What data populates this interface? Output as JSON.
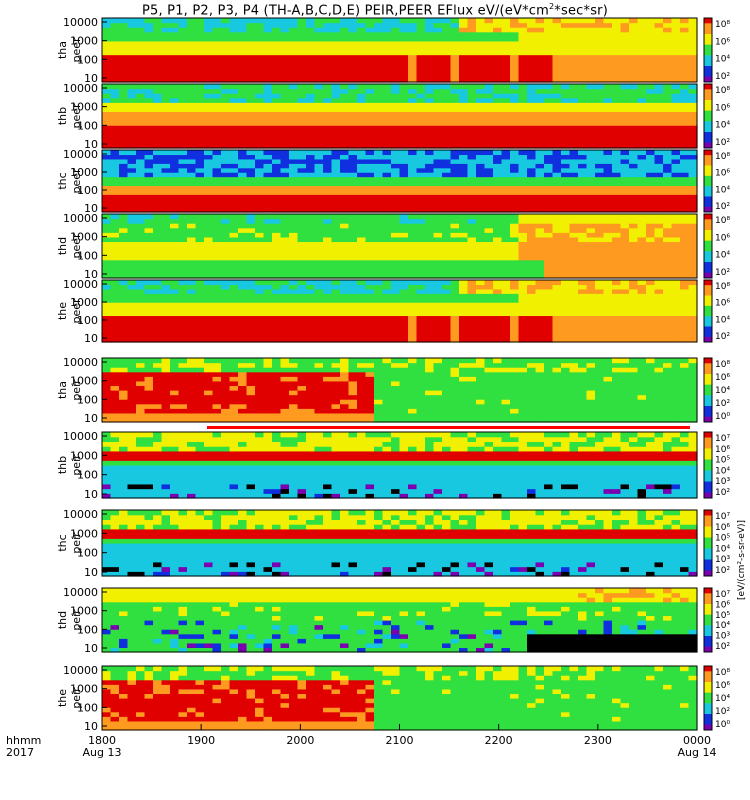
{
  "chart_data": {
    "type": "heatmap",
    "title": "P5, P1, P2, P3, P4 (TH-A,B,C,D,E) PEIR,PEER EFlux eV/(eV*cm²*sec*sr)",
    "colorbar_unit": "[eV/(cm²-s-sr-eV)]",
    "colors": {
      "black": "#000000",
      "purple": "#7a00b0",
      "blue": "#1030e0",
      "cyan": "#18c8e0",
      "green": "#30e040",
      "yellow": "#f0f000",
      "orange": "#ff9a20",
      "red": "#e00000",
      "axis_bar": "#ff0000"
    },
    "time_axis": {
      "row1_label": "hhmm",
      "row2_label": "2017",
      "ticks": [
        {
          "value": "1800",
          "date": "Aug 13"
        },
        {
          "value": "1900",
          "date": ""
        },
        {
          "value": "2000",
          "date": ""
        },
        {
          "value": "2100",
          "date": ""
        },
        {
          "value": "2200",
          "date": ""
        },
        {
          "value": "2300",
          "date": ""
        },
        {
          "value": "0000",
          "date": "Aug 14"
        }
      ],
      "range": [
        "2017-08-13 18:00",
        "2017-08-14 00:00"
      ]
    },
    "panels": [
      {
        "probe": "tha",
        "species": "peer",
        "yticks": [
          "10000",
          "1000",
          "100",
          "10"
        ],
        "cbticks": [
          "10⁸",
          "10⁶",
          "10⁴",
          "10²"
        ],
        "profile": "peer_hot"
      },
      {
        "probe": "thb",
        "species": "peer",
        "yticks": [
          "10000",
          "1000",
          "100",
          "10"
        ],
        "cbticks": [
          "10⁸",
          "10⁶",
          "10⁴",
          "10²"
        ],
        "profile": "peer_b"
      },
      {
        "probe": "thc",
        "species": "peer",
        "yticks": [
          "10000",
          "1000",
          "100",
          "10"
        ],
        "cbticks": [
          "10⁸",
          "10⁶",
          "10⁴",
          "10²"
        ],
        "profile": "peer_c"
      },
      {
        "probe": "thd",
        "species": "peer",
        "yticks": [
          "10000",
          "1000",
          "100",
          "10"
        ],
        "cbticks": [
          "10⁸",
          "10⁶",
          "10⁴",
          "10²"
        ],
        "profile": "peer_d"
      },
      {
        "probe": "the",
        "species": "peer",
        "yticks": [
          "10000",
          "1000",
          "100",
          "10"
        ],
        "cbticks": [
          "10⁸",
          "10⁶",
          "10⁴",
          "10²"
        ],
        "profile": "peer_hot"
      },
      {
        "probe": "tha",
        "species": "peir",
        "yticks": [
          "10000",
          "1000",
          "100",
          "10"
        ],
        "cbticks": [
          "10⁸",
          "10⁶",
          "10⁴",
          "10²",
          "10⁰"
        ],
        "profile": "peir_hot"
      },
      {
        "probe": "thb",
        "species": "peir",
        "yticks": [
          "10000",
          "1000",
          "100",
          "10"
        ],
        "cbticks": [
          "10⁷",
          "10⁶",
          "10⁵",
          "10⁴",
          "10³",
          "10²"
        ],
        "profile": "peir_band"
      },
      {
        "probe": "thc",
        "species": "peir",
        "yticks": [
          "10000",
          "1000",
          "100",
          "10"
        ],
        "cbticks": [
          "10⁷",
          "10⁶",
          "10⁵",
          "10⁴",
          "10³",
          "10²"
        ],
        "profile": "peir_band"
      },
      {
        "probe": "thd",
        "species": "peir",
        "yticks": [
          "10000",
          "1000",
          "100",
          "10"
        ],
        "cbticks": [
          "10⁷",
          "10⁶",
          "10⁵",
          "10⁴",
          "10³",
          "10²"
        ],
        "profile": "peir_d"
      },
      {
        "probe": "the",
        "species": "peir",
        "yticks": [
          "10000",
          "1000",
          "100",
          "10"
        ],
        "cbticks": [
          "10⁸",
          "10⁶",
          "10⁴",
          "10²",
          "10⁰"
        ],
        "profile": "peir_hot"
      }
    ]
  }
}
